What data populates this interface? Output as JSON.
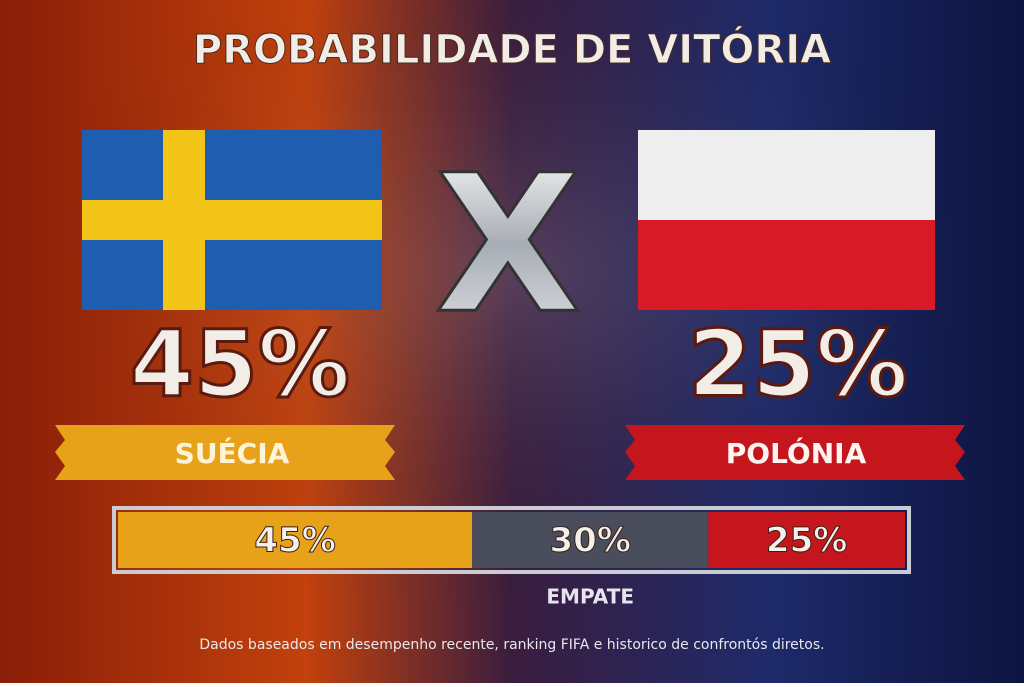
{
  "chart_data": {
    "type": "stacked-bar",
    "title": "PROBABILIDADE DE VITÓRIA",
    "versus": "X",
    "xlim": [
      0,
      100
    ],
    "series": [
      {
        "name": "SUÉCIA",
        "color": "#e8a21a",
        "values": [
          45
        ],
        "value_labels": [
          "45%"
        ]
      },
      {
        "name": "EMPATE",
        "color": "#4a4e5c",
        "values": [
          30
        ],
        "value_labels": [
          "30%"
        ]
      },
      {
        "name": "POLÓNIA",
        "color": "#c4161c",
        "values": [
          25
        ],
        "value_labels": [
          "25%"
        ]
      }
    ],
    "note": "Dados baseados em desempenho recente, ranking FIFA e historico de confrontós diretos."
  }
}
